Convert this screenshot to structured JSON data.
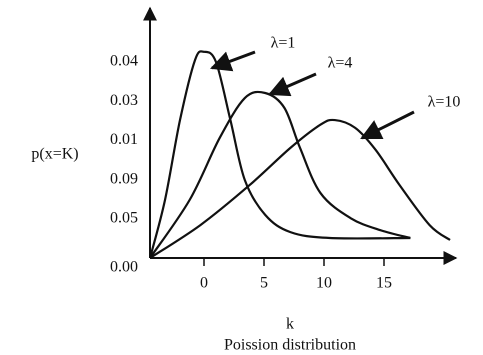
{
  "chart_data": {
    "type": "line",
    "y_label": "p(x=K)",
    "x_label": "k",
    "subtitle": "Poission distribution",
    "xlim": [
      -4.5,
      21
    ],
    "xticks": [
      0,
      5,
      10,
      15
    ],
    "ylim": [
      0,
      6.2
    ],
    "yticks": [
      {
        "value": 0,
        "label": "0.00"
      },
      {
        "value": 1,
        "label": "0.05"
      },
      {
        "value": 2,
        "label": "0.09"
      },
      {
        "value": 3,
        "label": "0.01"
      },
      {
        "value": 4,
        "label": "0.03"
      },
      {
        "value": 5,
        "label": "0.04"
      }
    ],
    "series": [
      {
        "name": "λ=1",
        "color": "#111111",
        "x": [
          -4.5,
          -3.25,
          -2,
          -0.75,
          0,
          1,
          2.2,
          3.4,
          5.1,
          7.2,
          10.5,
          17.2
        ],
        "values": [
          0,
          1.48,
          3.52,
          5.05,
          5.26,
          5.0,
          3.52,
          1.99,
          1.1,
          0.66,
          0.51,
          0.51
        ]
      },
      {
        "name": "λ=4",
        "color": "#111111",
        "x": [
          -4.5,
          -1.2,
          1.3,
          3.4,
          5.1,
          6.7,
          8,
          9.7,
          12.2,
          14.7,
          17.2
        ],
        "values": [
          0,
          1.48,
          3.06,
          4.08,
          4.21,
          3.83,
          2.81,
          1.66,
          1.02,
          0.71,
          0.51
        ]
      },
      {
        "name": "λ=10",
        "color": "#111111",
        "x": [
          -4.5,
          -0.3,
          3.8,
          7.2,
          9.7,
          10.9,
          12.6,
          14.3,
          16.3,
          18.8,
          20.5
        ],
        "values": [
          0,
          0.84,
          1.86,
          2.81,
          3.4,
          3.52,
          3.32,
          2.76,
          1.86,
          0.84,
          0.46
        ]
      }
    ]
  }
}
